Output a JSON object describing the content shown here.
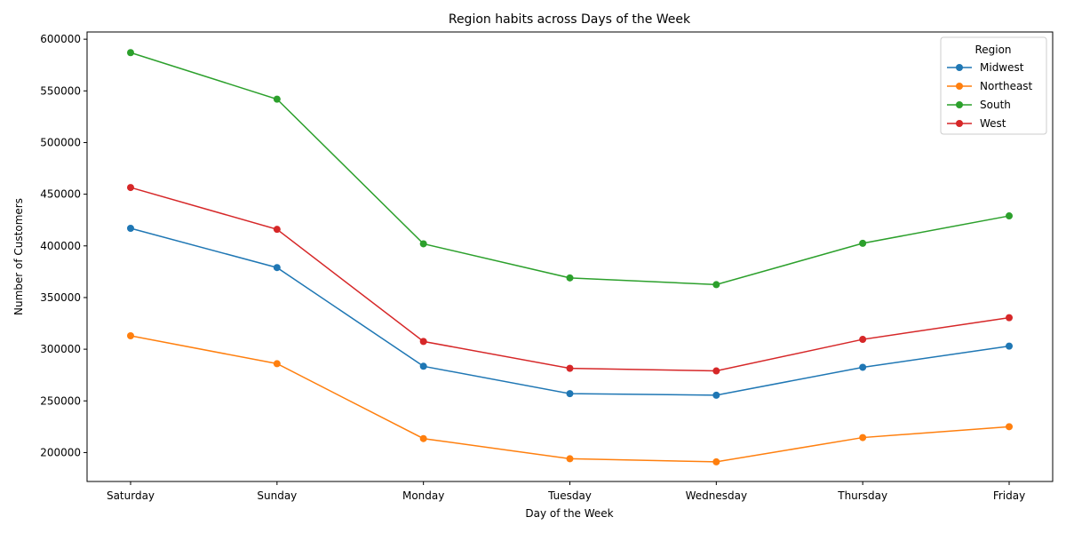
{
  "chart_data": {
    "type": "line",
    "title": "Region habits across Days of the Week",
    "xlabel": "Day of the Week",
    "ylabel": "Number of Customers",
    "categories": [
      "Saturday",
      "Sunday",
      "Monday",
      "Tuesday",
      "Wednesday",
      "Thursday",
      "Friday"
    ],
    "ylim": [
      172000,
      607000
    ],
    "yticks": [
      200000,
      250000,
      300000,
      350000,
      400000,
      450000,
      500000,
      550000,
      600000
    ],
    "grid": false,
    "legend": {
      "title": "Region",
      "placement": "top-right"
    },
    "series": [
      {
        "name": "Midwest",
        "color": "#1f77b4",
        "values": [
          417000,
          379000,
          283500,
          257000,
          255500,
          282500,
          303000
        ]
      },
      {
        "name": "Northeast",
        "color": "#ff7f0e",
        "values": [
          313000,
          286000,
          213500,
          194000,
          191000,
          214500,
          225000
        ]
      },
      {
        "name": "South",
        "color": "#2ca02c",
        "values": [
          587000,
          542000,
          402000,
          369000,
          362500,
          402500,
          429000
        ]
      },
      {
        "name": "West",
        "color": "#d62728",
        "values": [
          456500,
          416000,
          307500,
          281500,
          279000,
          309500,
          330500
        ]
      }
    ]
  }
}
